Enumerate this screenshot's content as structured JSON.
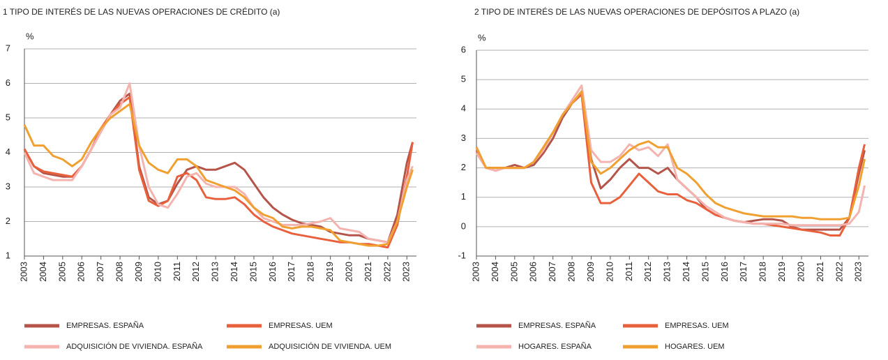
{
  "chart_data": [
    {
      "type": "line",
      "title": "1  TIPO DE INTERÉS DE LAS NUEVAS OPERACIONES DE CRÉDITO (a)",
      "y_label": "%",
      "x": [
        2003,
        2003.5,
        2004,
        2004.5,
        2005,
        2005.5,
        2006,
        2006.5,
        2007,
        2007.5,
        2008,
        2008.5,
        2009,
        2009.5,
        2010,
        2010.5,
        2011,
        2011.5,
        2012,
        2012.5,
        2013,
        2013.5,
        2014,
        2014.5,
        2015,
        2015.5,
        2016,
        2016.5,
        2017,
        2017.5,
        2018,
        2018.5,
        2019,
        2019.5,
        2020,
        2020.5,
        2021,
        2021.5,
        2022,
        2022.5,
        2023,
        2023.3
      ],
      "xlim": [
        2003,
        2023.5
      ],
      "xticks": [
        2003,
        2004,
        2005,
        2006,
        2007,
        2008,
        2009,
        2010,
        2011,
        2012,
        2013,
        2014,
        2015,
        2016,
        2017,
        2018,
        2019,
        2020,
        2021,
        2022,
        2023
      ],
      "ylim": [
        1,
        7
      ],
      "yticks": [
        1,
        2,
        3,
        4,
        5,
        6,
        7
      ],
      "grid": true,
      "series": [
        {
          "name": "EMPRESAS. ESPAÑA",
          "color": "#b5554a",
          "values": [
            4.1,
            3.6,
            3.4,
            3.35,
            3.3,
            3.3,
            3.6,
            4.1,
            4.6,
            5.1,
            5.5,
            5.7,
            3.6,
            2.7,
            2.5,
            2.6,
            3.1,
            3.5,
            3.6,
            3.5,
            3.5,
            3.6,
            3.7,
            3.5,
            3.1,
            2.7,
            2.4,
            2.2,
            2.05,
            1.95,
            1.9,
            1.85,
            1.7,
            1.65,
            1.6,
            1.6,
            1.5,
            1.45,
            1.4,
            2.2,
            3.7,
            4.3
          ]
        },
        {
          "name": "EMPRESAS. UEM",
          "color": "#e8603c",
          "values": [
            4.1,
            3.6,
            3.45,
            3.4,
            3.35,
            3.3,
            3.6,
            4.1,
            4.7,
            5.1,
            5.4,
            5.6,
            3.5,
            2.6,
            2.45,
            2.6,
            3.3,
            3.4,
            3.2,
            2.7,
            2.65,
            2.65,
            2.7,
            2.5,
            2.2,
            2.0,
            1.85,
            1.75,
            1.65,
            1.6,
            1.55,
            1.5,
            1.45,
            1.4,
            1.4,
            1.35,
            1.35,
            1.3,
            1.25,
            1.9,
            3.3,
            4.3
          ]
        },
        {
          "name": "ADQUISICIÓN DE VIVIENDA. ESPAÑA",
          "color": "#f4b3ae",
          "values": [
            4.0,
            3.4,
            3.3,
            3.2,
            3.2,
            3.2,
            3.6,
            4.1,
            4.6,
            5.1,
            5.3,
            6.0,
            4.2,
            3.0,
            2.5,
            2.4,
            2.8,
            3.3,
            3.4,
            3.1,
            3.0,
            3.0,
            3.0,
            2.8,
            2.4,
            2.1,
            2.0,
            1.9,
            1.9,
            1.9,
            1.95,
            2.0,
            2.1,
            1.8,
            1.75,
            1.7,
            1.5,
            1.45,
            1.4,
            2.0,
            3.2,
            3.6
          ]
        },
        {
          "name": "ADQUISICIÓN DE VIVIENDA. UEM",
          "color": "#f0a030",
          "values": [
            4.8,
            4.2,
            4.2,
            3.9,
            3.8,
            3.6,
            3.8,
            4.3,
            4.7,
            5.0,
            5.2,
            5.4,
            4.2,
            3.7,
            3.5,
            3.4,
            3.8,
            3.8,
            3.6,
            3.2,
            3.1,
            3.0,
            2.9,
            2.7,
            2.4,
            2.2,
            2.1,
            1.85,
            1.8,
            1.85,
            1.85,
            1.8,
            1.75,
            1.45,
            1.4,
            1.35,
            1.3,
            1.3,
            1.35,
            2.0,
            3.0,
            3.5
          ]
        }
      ]
    },
    {
      "type": "line",
      "title": "2  TIPO DE INTERÉS DE LAS NUEVAS OPERACIONES DE DEPÓSITOS A PLAZO (a)",
      "y_label": "%",
      "x": [
        2003,
        2003.5,
        2004,
        2004.5,
        2005,
        2005.5,
        2006,
        2006.5,
        2007,
        2007.5,
        2008,
        2008.5,
        2009,
        2009.5,
        2010,
        2010.5,
        2011,
        2011.5,
        2012,
        2012.5,
        2013,
        2013.5,
        2014,
        2014.5,
        2015,
        2015.5,
        2016,
        2016.5,
        2017,
        2017.5,
        2018,
        2018.5,
        2019,
        2019.5,
        2020,
        2020.5,
        2021,
        2021.5,
        2022,
        2022.5,
        2023,
        2023.3
      ],
      "xlim": [
        2003,
        2023.5
      ],
      "xticks": [
        2003,
        2004,
        2005,
        2006,
        2007,
        2008,
        2009,
        2010,
        2011,
        2012,
        2013,
        2014,
        2015,
        2016,
        2017,
        2018,
        2019,
        2020,
        2021,
        2022,
        2023
      ],
      "ylim": [
        -1,
        6
      ],
      "yticks": [
        -1,
        0,
        1,
        2,
        3,
        4,
        5,
        6
      ],
      "grid": true,
      "series": [
        {
          "name": "EMPRESAS. ESPAÑA",
          "color": "#b5554a",
          "values": [
            2.7,
            2.0,
            2.0,
            2.0,
            2.1,
            2.0,
            2.1,
            2.5,
            3.0,
            3.7,
            4.2,
            4.5,
            2.3,
            1.3,
            1.6,
            2.0,
            2.3,
            2.0,
            2.0,
            1.8,
            2.0,
            1.6,
            1.3,
            1.0,
            0.6,
            0.4,
            0.3,
            0.2,
            0.15,
            0.2,
            0.25,
            0.25,
            0.2,
            0.0,
            -0.1,
            -0.1,
            -0.1,
            -0.1,
            -0.1,
            0.3,
            1.8,
            2.6
          ]
        },
        {
          "name": "EMPRESAS. UEM",
          "color": "#e8603c",
          "values": [
            2.6,
            2.0,
            2.0,
            2.0,
            2.0,
            2.0,
            2.2,
            2.7,
            3.2,
            3.8,
            4.2,
            4.5,
            1.5,
            0.8,
            0.8,
            1.0,
            1.4,
            1.8,
            1.5,
            1.2,
            1.1,
            1.1,
            0.9,
            0.8,
            0.6,
            0.4,
            0.3,
            0.2,
            0.15,
            0.1,
            0.1,
            0.05,
            0.0,
            -0.05,
            -0.1,
            -0.15,
            -0.2,
            -0.3,
            -0.3,
            0.3,
            2.0,
            2.8
          ]
        },
        {
          "name": "HOGARES. ESPAÑA",
          "color": "#f4b3ae",
          "values": [
            2.5,
            2.0,
            1.9,
            2.0,
            2.0,
            2.0,
            2.2,
            2.6,
            3.2,
            3.8,
            4.3,
            4.8,
            2.6,
            2.2,
            2.2,
            2.4,
            2.8,
            2.6,
            2.7,
            2.4,
            2.8,
            1.6,
            1.3,
            1.0,
            0.7,
            0.5,
            0.3,
            0.2,
            0.15,
            0.1,
            0.1,
            0.1,
            0.1,
            0.05,
            0.05,
            0.05,
            0.05,
            0.05,
            0.05,
            0.1,
            0.5,
            1.4
          ]
        },
        {
          "name": "HOGARES. UEM",
          "color": "#f0a030",
          "values": [
            2.7,
            2.0,
            2.0,
            2.0,
            2.0,
            2.0,
            2.2,
            2.7,
            3.2,
            3.8,
            4.2,
            4.6,
            2.2,
            1.8,
            2.0,
            2.3,
            2.6,
            2.8,
            2.9,
            2.7,
            2.7,
            2.0,
            1.8,
            1.5,
            1.1,
            0.8,
            0.65,
            0.55,
            0.45,
            0.4,
            0.35,
            0.35,
            0.35,
            0.35,
            0.3,
            0.3,
            0.25,
            0.25,
            0.25,
            0.3,
            1.4,
            2.3
          ]
        }
      ]
    }
  ]
}
